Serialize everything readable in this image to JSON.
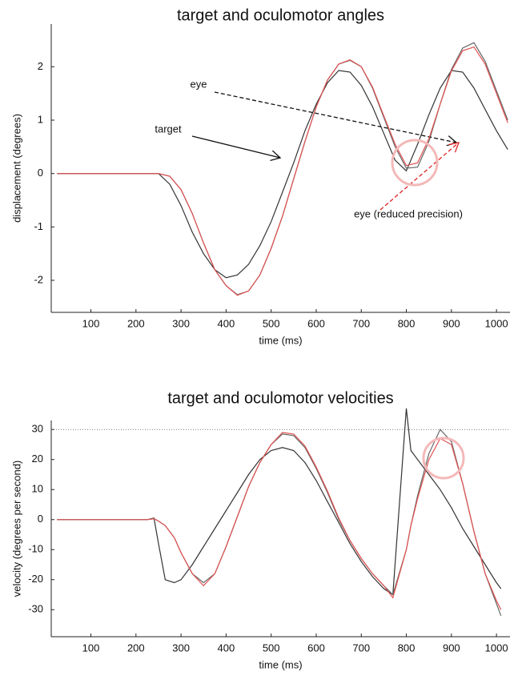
{
  "chart_data": [
    {
      "type": "line",
      "title": "target and oculomotor angles",
      "x_label": "time (ms)",
      "y_label": "displacement (degrees)",
      "x": [
        25,
        50,
        75,
        100,
        125,
        150,
        175,
        200,
        225,
        250,
        275,
        300,
        325,
        350,
        375,
        400,
        425,
        450,
        475,
        500,
        525,
        550,
        575,
        600,
        625,
        650,
        675,
        700,
        725,
        750,
        775,
        800,
        825,
        850,
        875,
        900,
        925,
        950,
        975,
        1000,
        1025
      ],
      "series": [
        {
          "name": "target",
          "color": "#333333",
          "values": [
            0,
            0,
            0,
            0,
            0,
            0,
            0,
            0,
            0,
            0,
            -0.2,
            -0.6,
            -1.1,
            -1.5,
            -1.8,
            -1.95,
            -1.9,
            -1.7,
            -1.35,
            -0.9,
            -0.35,
            0.2,
            0.8,
            1.3,
            1.7,
            1.93,
            1.9,
            1.65,
            1.25,
            0.75,
            0.25,
            0.05,
            0.55,
            1.1,
            1.6,
            1.93,
            1.9,
            1.6,
            1.2,
            0.8,
            0.45
          ]
        },
        {
          "name": "eye",
          "color": "#666666",
          "values": [
            0,
            0,
            0,
            0,
            0,
            0,
            0,
            0,
            0,
            0,
            -0.05,
            -0.3,
            -0.75,
            -1.3,
            -1.8,
            -2.1,
            -2.27,
            -2.2,
            -1.9,
            -1.4,
            -0.8,
            -0.1,
            0.6,
            1.25,
            1.75,
            2.05,
            2.12,
            2,
            1.6,
            1.05,
            0.5,
            0.1,
            0.12,
            0.6,
            1.3,
            1.95,
            2.35,
            2.45,
            2.1,
            1.55,
            1
          ]
        },
        {
          "name": "eye (reduced precision)",
          "color": "#e05050",
          "values": [
            0,
            0,
            0,
            0,
            0,
            0,
            0,
            0,
            0,
            0,
            -0.05,
            -0.3,
            -0.75,
            -1.3,
            -1.8,
            -2.1,
            -2.28,
            -2.2,
            -1.9,
            -1.4,
            -0.8,
            -0.1,
            0.6,
            1.25,
            1.75,
            2.05,
            2.13,
            2,
            1.62,
            1.08,
            0.55,
            0.15,
            0.2,
            0.65,
            1.3,
            1.92,
            2.3,
            2.37,
            2.05,
            1.5,
            0.95
          ]
        }
      ],
      "xlim": [
        12,
        1030
      ],
      "ylim": [
        -2.6,
        2.8
      ],
      "xticks": [
        100,
        200,
        300,
        400,
        500,
        600,
        700,
        800,
        900,
        1000
      ],
      "yticks": [
        -2,
        -1,
        0,
        1,
        2
      ]
    },
    {
      "type": "line",
      "title": "target and oculomotor velocities",
      "x_label": "time (ms)",
      "y_label": "velocity (degrees per second)",
      "x": [
        25,
        50,
        75,
        100,
        125,
        150,
        175,
        200,
        225,
        240,
        250,
        265,
        285,
        300,
        325,
        350,
        375,
        400,
        425,
        450,
        475,
        500,
        525,
        550,
        575,
        600,
        625,
        650,
        675,
        700,
        725,
        750,
        770,
        800,
        810,
        825,
        850,
        875,
        900,
        925,
        950,
        975,
        1000,
        1010
      ],
      "series": [
        {
          "color": "#333333",
          "values": [
            0,
            0,
            0,
            0,
            0,
            0,
            0,
            0,
            0,
            0.5,
            -8,
            -20,
            -21,
            -20,
            -15,
            -9,
            -3,
            3,
            9,
            15,
            20,
            23,
            24,
            23,
            19,
            13,
            6,
            -1,
            -8,
            -14,
            -19,
            -23,
            -25,
            37,
            23,
            20,
            15,
            10,
            4,
            -3,
            -9,
            -15,
            -21,
            -23
          ]
        },
        {
          "color": "#666666",
          "values": [
            0,
            0,
            0,
            0,
            0,
            0,
            0,
            0,
            0,
            0.3,
            -0.5,
            -2,
            -6,
            -11,
            -18,
            -21,
            -18,
            -9,
            1,
            11,
            19,
            25,
            28.5,
            28,
            24,
            17,
            9,
            0,
            -7,
            -13,
            -18,
            -22,
            -25,
            -10,
            -2,
            8,
            22,
            30,
            26,
            12,
            -4,
            -18,
            -28,
            -32
          ]
        },
        {
          "color": "#e05050",
          "values": [
            0,
            0,
            0,
            0,
            0,
            0,
            0,
            0,
            0,
            0.3,
            -0.5,
            -2,
            -6,
            -11,
            -18,
            -22,
            -18,
            -9,
            1,
            11,
            19,
            25,
            29,
            28.5,
            24.5,
            17.5,
            9.5,
            0.5,
            -7,
            -13,
            -18,
            -22,
            -26,
            -10,
            -2,
            7,
            20,
            27,
            25,
            12,
            -4,
            -18,
            -27,
            -30
          ]
        }
      ],
      "xlim": [
        12,
        1030
      ],
      "ylim": [
        -39,
        33
      ],
      "xticks": [
        100,
        200,
        300,
        400,
        500,
        600,
        700,
        800,
        900,
        1000
      ],
      "yticks": [
        -30,
        -20,
        -10,
        0,
        10,
        20,
        30
      ],
      "reference_line": 30
    }
  ]
}
